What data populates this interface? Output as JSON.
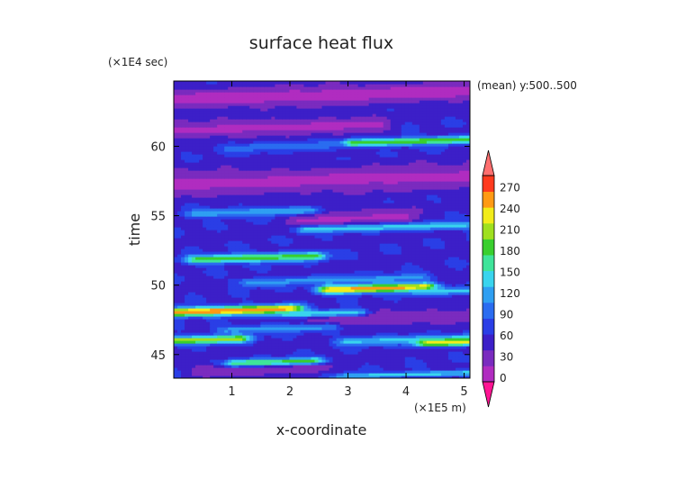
{
  "chart_data": {
    "type": "heatmap",
    "title": "surface heat flux",
    "xlabel": "x-coordinate",
    "ylabel": "time",
    "x_unit": "(×1E5 m)",
    "y_unit": "(×1E4 sec)",
    "annotation": "(mean) y:500..500",
    "xlim": [
      0,
      5.1
    ],
    "ylim": [
      43.3,
      64.7
    ],
    "x_ticks": [
      "1",
      "2",
      "3",
      "4",
      "5"
    ],
    "x_tick_values": [
      1,
      2,
      3,
      4,
      5
    ],
    "y_ticks": [
      "45",
      "50",
      "55",
      "60"
    ],
    "y_tick_values": [
      45,
      50,
      55,
      60
    ],
    "colorbar": {
      "levels": [
        0,
        30,
        60,
        90,
        120,
        150,
        180,
        210,
        240,
        270
      ],
      "labels": [
        "0",
        "30",
        "60",
        "90",
        "120",
        "150",
        "180",
        "210",
        "240",
        "270"
      ],
      "colors": [
        "#ff1493",
        "#b02cc0",
        "#7a2bbf",
        "#3c1fc8",
        "#2a3ee6",
        "#2a6cf0",
        "#2f9ff2",
        "#39d4ee",
        "#3fe49a",
        "#39cf2e",
        "#9fe01f",
        "#f2ec1a",
        "#ff9a14",
        "#ff3a1e",
        "#ff6f6f"
      ]
    },
    "field": {
      "background": 60,
      "bands": [
        {
          "t": 63.7,
          "x0": 0.0,
          "x1": 5.1,
          "v": 15,
          "w": 0.7
        },
        {
          "t": 61.4,
          "x0": 0.0,
          "x1": 3.5,
          "v": 20,
          "w": 0.6
        },
        {
          "t": 57.6,
          "x0": 0.0,
          "x1": 5.1,
          "v": 20,
          "w": 0.9
        },
        {
          "t": 54.8,
          "x0": 2.2,
          "x1": 4.0,
          "v": 22,
          "w": 0.7
        },
        {
          "t": 47.7,
          "x0": 2.5,
          "x1": 5.1,
          "v": 25,
          "w": 0.5
        },
        {
          "t": 44.0,
          "x0": 0.5,
          "x1": 2.5,
          "v": 25,
          "w": 0.4
        },
        {
          "t": 60.4,
          "x0": 3.1,
          "x1": 5.1,
          "v": 180,
          "w": 0.28
        },
        {
          "t": 60.0,
          "x0": 1.0,
          "x1": 2.6,
          "v": 95,
          "w": 0.35
        },
        {
          "t": 55.3,
          "x0": 0.4,
          "x1": 2.3,
          "v": 120,
          "w": 0.3
        },
        {
          "t": 54.2,
          "x0": 2.3,
          "x1": 5.0,
          "v": 135,
          "w": 0.28
        },
        {
          "t": 52.0,
          "x0": 0.4,
          "x1": 2.4,
          "v": 175,
          "w": 0.32
        },
        {
          "t": 50.4,
          "x0": 1.3,
          "x1": 4.2,
          "v": 110,
          "w": 0.3
        },
        {
          "t": 49.8,
          "x0": 2.7,
          "x1": 4.3,
          "v": 235,
          "w": 0.3
        },
        {
          "t": 49.6,
          "x0": 4.3,
          "x1": 5.1,
          "v": 130,
          "w": 0.25
        },
        {
          "t": 48.2,
          "x0": 0.0,
          "x1": 2.0,
          "v": 245,
          "w": 0.32
        },
        {
          "t": 48.0,
          "x0": 2.0,
          "x1": 3.1,
          "v": 140,
          "w": 0.25
        },
        {
          "t": 46.9,
          "x0": 0.9,
          "x1": 2.6,
          "v": 110,
          "w": 0.3
        },
        {
          "t": 46.1,
          "x0": 0.0,
          "x1": 1.1,
          "v": 200,
          "w": 0.28
        },
        {
          "t": 46.1,
          "x0": 3.0,
          "x1": 5.1,
          "v": 130,
          "w": 0.3
        },
        {
          "t": 45.9,
          "x0": 4.4,
          "x1": 5.1,
          "v": 215,
          "w": 0.25
        },
        {
          "t": 44.5,
          "x0": 1.1,
          "x1": 2.4,
          "v": 170,
          "w": 0.25
        },
        {
          "t": 43.6,
          "x0": 3.0,
          "x1": 5.1,
          "v": 135,
          "w": 0.2
        }
      ]
    }
  }
}
